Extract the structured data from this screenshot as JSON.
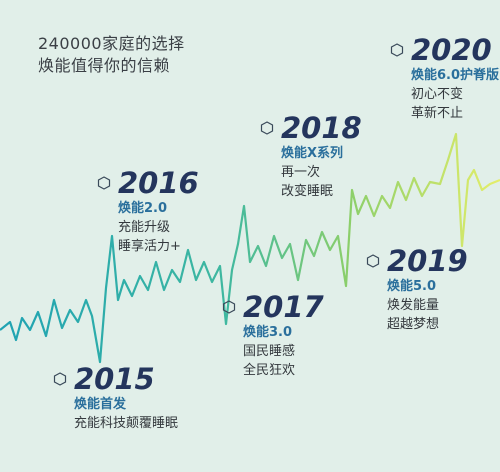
{
  "headline": [
    "240000家庭的选择",
    "焕能值得你的信赖"
  ],
  "milestones": [
    {
      "year": "2015",
      "product": "焕能首发",
      "lines": [
        "充能科技颠覆睡眠"
      ]
    },
    {
      "year": "2016",
      "product": "焕能2.0",
      "lines": [
        "充能升级",
        "睡享活力+"
      ]
    },
    {
      "year": "2017",
      "product": "焕能3.0",
      "lines": [
        "国民睡感",
        "全民狂欢"
      ]
    },
    {
      "year": "2018",
      "product": "焕能X系列",
      "lines": [
        "再一次",
        "改变睡眠"
      ]
    },
    {
      "year": "2019",
      "product": "焕能5.0",
      "lines": [
        "焕发能量",
        "超越梦想"
      ]
    },
    {
      "year": "2020",
      "product": "焕能6.0护脊版",
      "lines": [
        "初心不变",
        "革新不止"
      ]
    }
  ]
}
